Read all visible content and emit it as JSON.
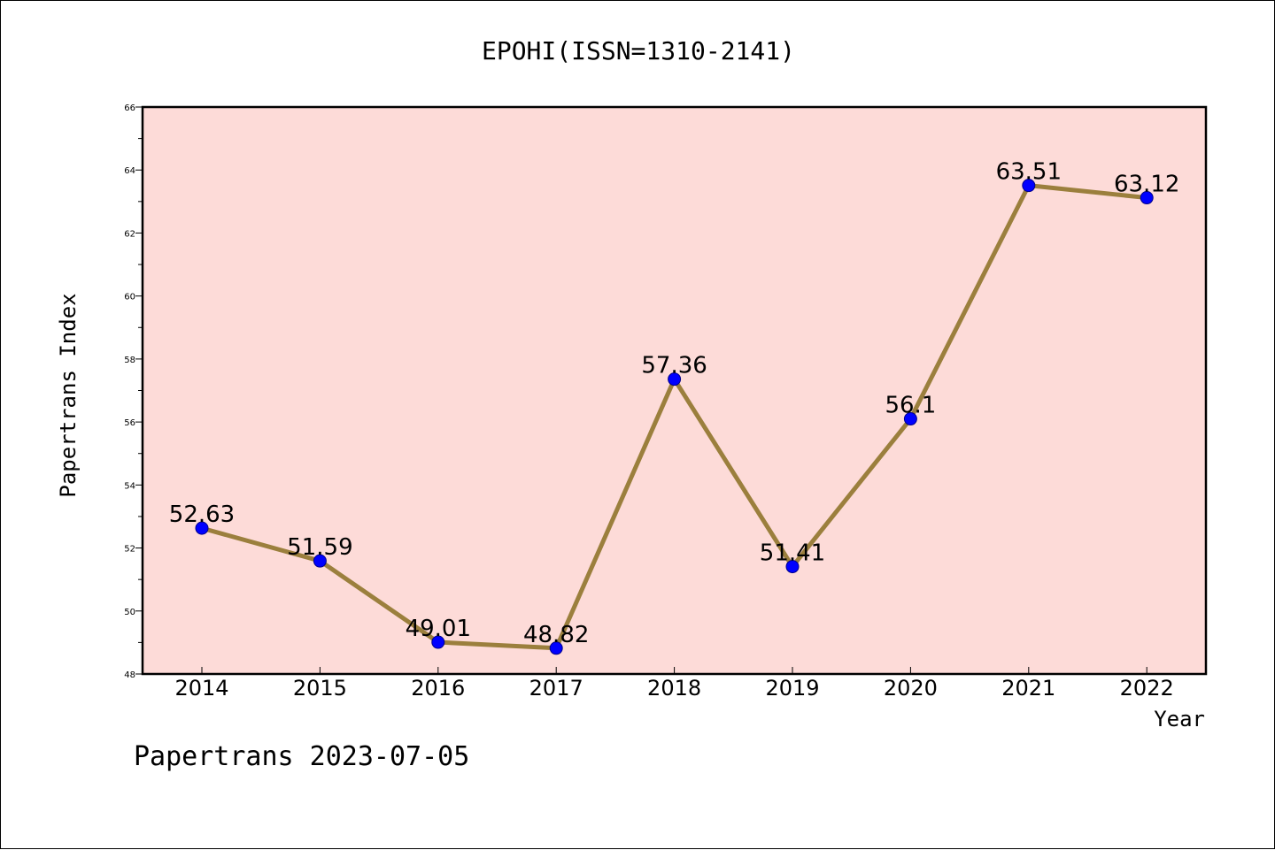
{
  "chart_data": {
    "type": "line",
    "title": "EPOHI(ISSN=1310-2141)",
    "xlabel": "Year",
    "ylabel": "Papertrans Index",
    "categories": [
      "2014",
      "2015",
      "2016",
      "2017",
      "2018",
      "2019",
      "2020",
      "2021",
      "2022"
    ],
    "series": [
      {
        "values": [
          52.63,
          51.59,
          49.01,
          48.82,
          57.36,
          51.41,
          56.1,
          63.51,
          63.12
        ]
      }
    ],
    "data_labels": [
      "52.63",
      "51.59",
      "49.01",
      "48.82",
      "57.36",
      "51.41",
      "56.1",
      "63.51",
      "63.12"
    ],
    "ylim": [
      48,
      66
    ],
    "yticks": [
      48,
      50,
      52,
      54,
      56,
      58,
      60,
      62,
      64,
      66
    ],
    "grid": false,
    "plot_background": "#fddbd8",
    "line_color": "#9b7f3d",
    "marker_color": "#0000ff"
  },
  "footer": "Papertrans 2023-07-05"
}
